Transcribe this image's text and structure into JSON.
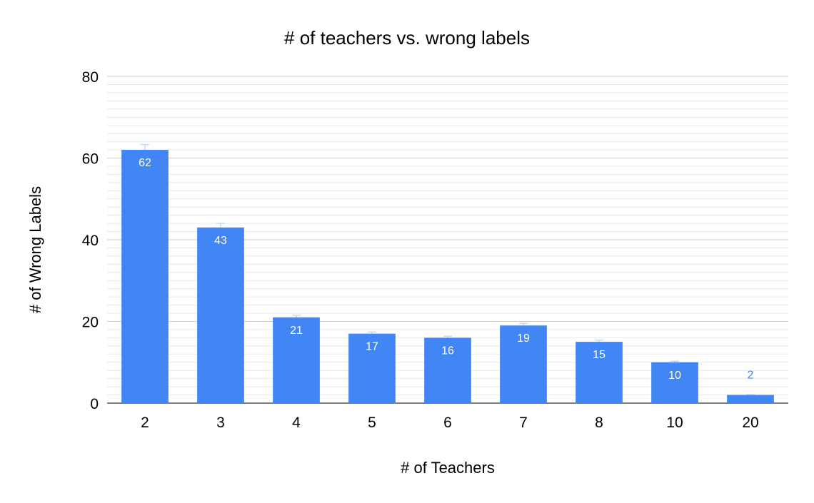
{
  "chart_data": {
    "type": "bar",
    "title": "# of teachers vs. wrong labels",
    "xlabel": "# of Teachers",
    "ylabel": "# of Wrong Labels",
    "categories": [
      "2",
      "3",
      "4",
      "5",
      "6",
      "7",
      "8",
      "10",
      "20"
    ],
    "values": [
      62,
      43,
      21,
      17,
      16,
      19,
      15,
      10,
      2
    ],
    "data_labels": [
      "62",
      "43",
      "21",
      "17",
      "16",
      "19",
      "15",
      "10",
      "2"
    ],
    "error_bars": [
      1.3,
      1.0,
      0.5,
      0.4,
      0.4,
      0.5,
      0.4,
      0.3,
      0.1
    ],
    "ylim": [
      0,
      80
    ],
    "yticks": [
      "0",
      "20",
      "40",
      "60",
      "80"
    ],
    "grid": true,
    "minor_grid": true,
    "legend": "none",
    "colors": {
      "bar": "#4285f4",
      "label_inside": "#ffffff",
      "label_outside": "#4285f4",
      "error_bar": "#c6d9f7",
      "major_grid": "#cccccc",
      "minor_grid": "#e8e8e8",
      "baseline": "#333333"
    }
  }
}
